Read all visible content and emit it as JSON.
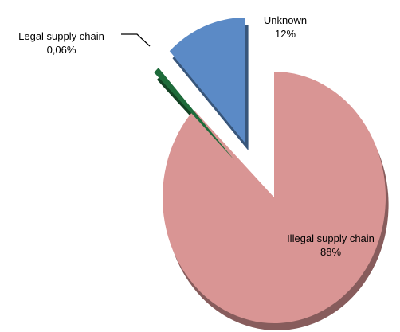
{
  "chart_data": {
    "type": "pie",
    "title": "",
    "exploded": true,
    "style": "3d-tilted",
    "slices": [
      {
        "label": "Illegal supply chain",
        "value": 88,
        "value_label": "88%",
        "color": "#d99594"
      },
      {
        "label": "Legal supply chain",
        "value": 0.06,
        "value_label": "0,06%",
        "color": "#1e6b3a"
      },
      {
        "label": "Unknown",
        "value": 12,
        "value_label": "12%",
        "color": "#5b8ac6"
      }
    ],
    "legend": "none"
  }
}
